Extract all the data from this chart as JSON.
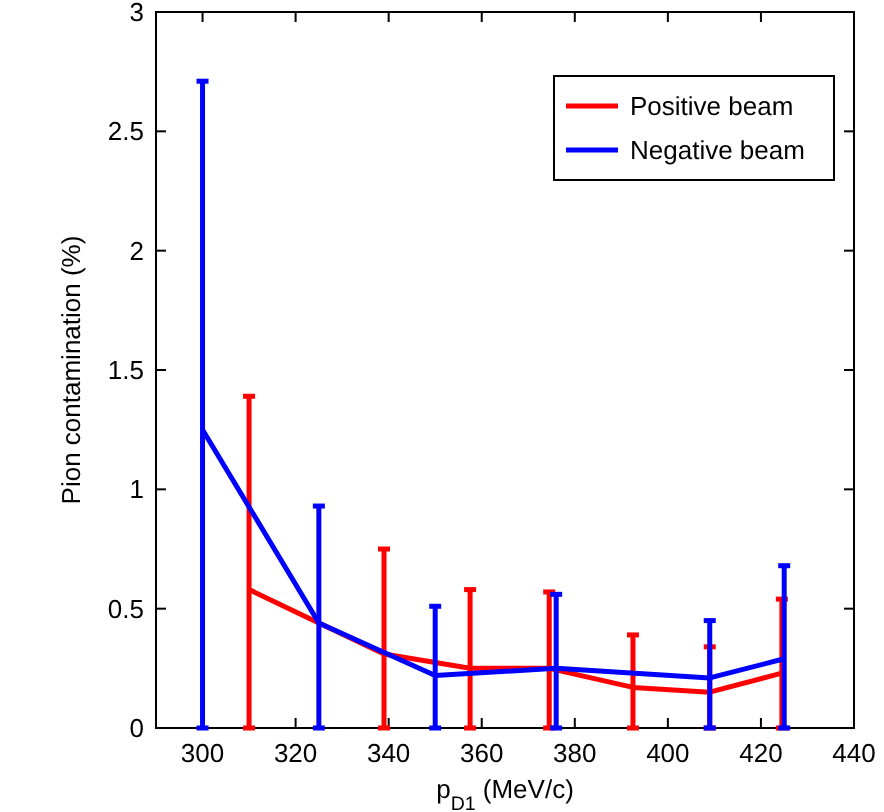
{
  "chart_data": {
    "type": "line",
    "xlabel": "p$_{D1}$ (MeV/c)",
    "ylabel": "Pion contamination (%)",
    "xlim": [
      290,
      440
    ],
    "xticks": [
      300,
      320,
      340,
      360,
      380,
      400,
      420,
      440
    ],
    "ylim": [
      0,
      3
    ],
    "yticks": [
      0,
      0.5,
      1,
      1.5,
      2,
      2.5,
      3
    ],
    "legend": "top right",
    "grid": false,
    "marker": "none",
    "line_style": "solid",
    "series": [
      {
        "name": "Positive beam",
        "color": "#ff0000",
        "x": [
          310,
          325,
          339,
          357.5,
          374.5,
          392.5,
          409,
          424.5
        ],
        "values": [
          0.58,
          0.44,
          0.31,
          0.25,
          0.25,
          0.17,
          0.15,
          0.23
        ],
        "errors": [
          [
            0,
            1.39
          ],
          null,
          [
            0,
            0.75
          ],
          [
            0,
            0.58
          ],
          [
            0,
            0.57
          ],
          [
            0,
            0.39
          ],
          [
            0,
            0.34
          ],
          [
            0,
            0.54
          ]
        ]
      },
      {
        "name": "Negative beam",
        "color": "#0000ff",
        "x": [
          300,
          325,
          350,
          376,
          409,
          425
        ],
        "values": [
          1.25,
          0.44,
          0.22,
          0.25,
          0.21,
          0.29
        ],
        "errors": [
          [
            0,
            2.71
          ],
          [
            0,
            0.93
          ],
          [
            0,
            0.51
          ],
          [
            0,
            0.56
          ],
          [
            0,
            0.45
          ],
          [
            0,
            0.68
          ]
        ]
      }
    ]
  }
}
